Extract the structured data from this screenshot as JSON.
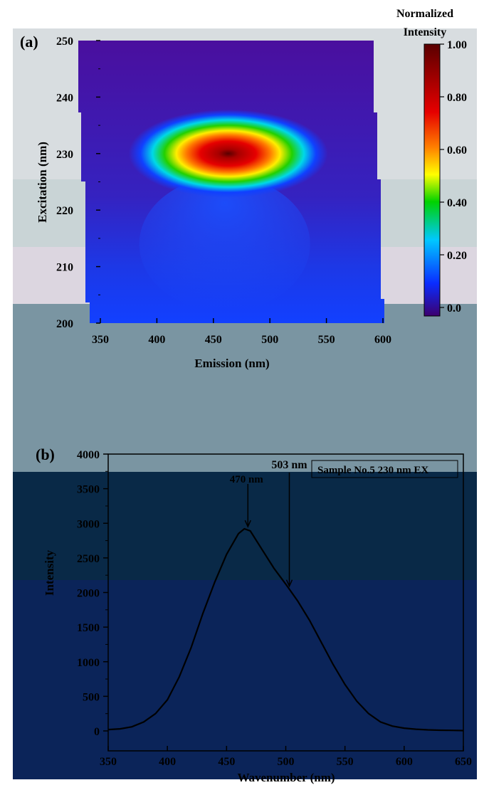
{
  "chart_data": [
    {
      "type": "heatmap",
      "panel_label": "(a)",
      "xlabel": "Emission (nm)",
      "ylabel": "Excitation (nm)",
      "xlim": [
        350,
        600
      ],
      "ylim": [
        200,
        250
      ],
      "xticks": [
        350,
        400,
        450,
        500,
        550,
        600
      ],
      "yticks": [
        200,
        210,
        220,
        230,
        240,
        250
      ],
      "peak": {
        "emission": 460,
        "excitation": 230,
        "value": 1.0
      },
      "colorbar": {
        "title": "Normalized Intensity",
        "range": [
          0.0,
          1.0
        ],
        "ticks": [
          "0.0",
          "0.20",
          "0.40",
          "0.60",
          "0.80",
          "1.00"
        ],
        "colors": [
          "#3d006e",
          "#0a2cff",
          "#00c8ff",
          "#00d200",
          "#ffff00",
          "#ff8000",
          "#e60000",
          "#5a0000"
        ]
      }
    },
    {
      "type": "line",
      "panel_label": "(b)",
      "legend": "Sample No.5 230 nm EX",
      "xlabel": "Wavenumber (nm)",
      "ylabel": "Intensity",
      "xlim": [
        350,
        650
      ],
      "ylim": [
        0,
        4000
      ],
      "xticks": [
        350,
        400,
        450,
        500,
        550,
        600,
        650
      ],
      "yticks": [
        0,
        500,
        1000,
        1500,
        2000,
        2500,
        3000,
        3500,
        4000
      ],
      "series": [
        {
          "x": [
            350,
            360,
            370,
            380,
            390,
            400,
            410,
            420,
            430,
            440,
            450,
            460,
            465,
            470,
            480,
            490,
            500,
            510,
            520,
            530,
            540,
            550,
            560,
            570,
            580,
            590,
            600,
            610,
            620,
            630,
            640,
            650
          ],
          "values": [
            20,
            30,
            60,
            130,
            250,
            450,
            780,
            1200,
            1700,
            2150,
            2550,
            2850,
            2920,
            2890,
            2620,
            2350,
            2120,
            1880,
            1600,
            1280,
            960,
            670,
            430,
            250,
            130,
            70,
            40,
            25,
            15,
            10,
            8,
            5
          ]
        }
      ],
      "annotations": [
        {
          "text": "470 nm",
          "x": 468,
          "y": 2920
        },
        {
          "text": "503 nm",
          "x": 503,
          "y": 2060
        }
      ]
    }
  ]
}
